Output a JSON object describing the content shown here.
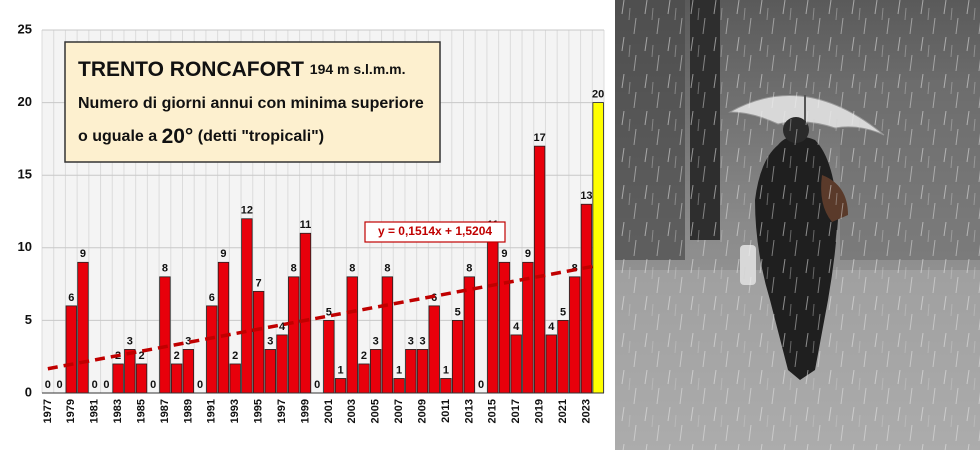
{
  "chart_data": {
    "type": "bar",
    "title": "TRENTO RONCAFORT",
    "elevation": "194 m s.l.m.m.",
    "subtitle": [
      "Numero di giorni annui con minima superiore",
      "o uguale a",
      "20°",
      "(detti \"tropicali\")"
    ],
    "categories": [
      "1977",
      null,
      "1979",
      null,
      "1981",
      null,
      "1983",
      null,
      "1985",
      null,
      "1987",
      null,
      "1989",
      null,
      "1991",
      null,
      "1993",
      null,
      "1995",
      null,
      "1997",
      null,
      "1999",
      null,
      "2001",
      null,
      "2003",
      null,
      "2005",
      null,
      "2007",
      null,
      "2009",
      null,
      "2011",
      null,
      "2013",
      null,
      "2015",
      null,
      "2017",
      null,
      "2019",
      null,
      "2021",
      null,
      "2023",
      null
    ],
    "values": [
      0,
      0,
      6,
      9,
      0,
      0,
      2,
      3,
      2,
      0,
      8,
      2,
      3,
      0,
      6,
      9,
      2,
      12,
      7,
      3,
      4,
      8,
      11,
      0,
      5,
      1,
      8,
      2,
      3,
      8,
      1,
      3,
      3,
      6,
      1,
      5,
      8,
      0,
      11,
      9,
      4,
      9,
      17,
      4,
      5,
      8,
      13,
      20
    ],
    "colors": [
      "#e8000b",
      "#e8000b",
      "#e8000b",
      "#e8000b",
      "#e8000b",
      "#e8000b",
      "#e8000b",
      "#e8000b",
      "#e8000b",
      "#e8000b",
      "#e8000b",
      "#e8000b",
      "#e8000b",
      "#e8000b",
      "#e8000b",
      "#e8000b",
      "#e8000b",
      "#e8000b",
      "#e8000b",
      "#e8000b",
      "#e8000b",
      "#e8000b",
      "#e8000b",
      "#e8000b",
      "#e8000b",
      "#e8000b",
      "#e8000b",
      "#e8000b",
      "#e8000b",
      "#e8000b",
      "#e8000b",
      "#e8000b",
      "#e8000b",
      "#e8000b",
      "#e8000b",
      "#e8000b",
      "#e8000b",
      "#e8000b",
      "#e8000b",
      "#e8000b",
      "#e8000b",
      "#e8000b",
      "#e8000b",
      "#e8000b",
      "#e8000b",
      "#e8000b",
      "#e8000b",
      "#ffff00"
    ],
    "ylim": [
      0,
      25
    ],
    "yticks": [
      0,
      5,
      10,
      15,
      20,
      25
    ],
    "grid": true,
    "trendline": {
      "label": "y = 0,1514x + 1,5204",
      "slope": 0.1514,
      "intercept": 1.5204,
      "color": "#c00000"
    }
  }
}
